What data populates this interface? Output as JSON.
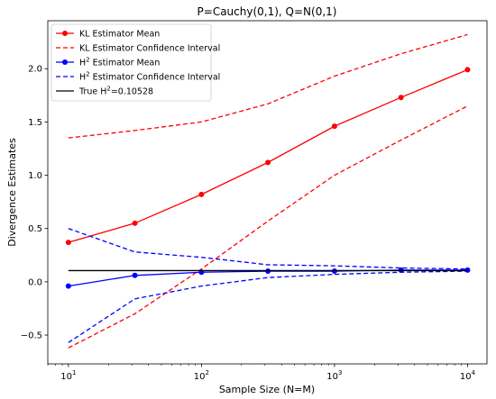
{
  "chart_data": {
    "type": "line",
    "title": "P=Cauchy(0,1), Q=N(0,1)",
    "xlabel": "Sample Size (N=M)",
    "ylabel": "Divergence Estimates",
    "x_scale": "log",
    "xlim": [
      7,
      14000
    ],
    "ylim": [
      -0.77,
      2.45
    ],
    "x_ticks": [
      {
        "value": 10,
        "base": "10",
        "exp": "1"
      },
      {
        "value": 100,
        "base": "10",
        "exp": "2"
      },
      {
        "value": 1000,
        "base": "10",
        "exp": "3"
      },
      {
        "value": 10000,
        "base": "10",
        "exp": "4"
      }
    ],
    "y_ticks": [
      {
        "value": -0.5,
        "label": "−0.5"
      },
      {
        "value": 0.0,
        "label": "0.0"
      },
      {
        "value": 0.5,
        "label": "0.5"
      },
      {
        "value": 1.0,
        "label": "1.0"
      },
      {
        "value": 1.5,
        "label": "1.5"
      },
      {
        "value": 2.0,
        "label": "2.0"
      }
    ],
    "x": [
      10,
      31.6,
      100,
      316,
      1000,
      3162,
      10000
    ],
    "legend_position": "top-left",
    "series": [
      {
        "name": "KL Estimator Mean",
        "color": "#ff0000",
        "style": "solid",
        "marker": true,
        "values": [
          0.37,
          0.55,
          0.82,
          1.12,
          1.46,
          1.73,
          1.99
        ]
      },
      {
        "name": "KL Estimator Confidence Interval",
        "color": "#ff0000",
        "style": "dashed",
        "marker": false,
        "values": [
          1.35,
          1.42,
          1.5,
          1.67,
          1.93,
          2.14,
          2.32
        ]
      },
      {
        "name": "KL Estimator Confidence Interval (lower)",
        "legend": false,
        "color": "#ff0000",
        "style": "dashed",
        "marker": false,
        "values": [
          -0.62,
          -0.3,
          0.12,
          0.57,
          1.0,
          1.33,
          1.65
        ]
      },
      {
        "name": "H² Estimator Mean",
        "color": "#0000ff",
        "style": "solid",
        "marker": true,
        "values": [
          -0.04,
          0.06,
          0.09,
          0.1,
          0.1,
          0.11,
          0.11
        ]
      },
      {
        "name": "H² Estimator Confidence Interval",
        "color": "#0000ff",
        "style": "dashed",
        "marker": false,
        "values": [
          0.5,
          0.28,
          0.23,
          0.16,
          0.15,
          0.13,
          0.12
        ]
      },
      {
        "name": "H² Estimator Confidence Interval (lower)",
        "legend": false,
        "color": "#0000ff",
        "style": "dashed",
        "marker": false,
        "values": [
          -0.57,
          -0.16,
          -0.04,
          0.04,
          0.07,
          0.09,
          0.1
        ]
      },
      {
        "name": "True H²=0.10528",
        "color": "#000000",
        "style": "solid",
        "marker": false,
        "values": [
          0.10528,
          0.10528,
          0.10528,
          0.10528,
          0.10528,
          0.10528,
          0.10528
        ]
      }
    ],
    "legend": [
      {
        "series": 0,
        "pre": "KL Estimator Mean",
        "sup": "",
        "post": ""
      },
      {
        "series": 1,
        "pre": "KL Estimator Confidence Interval",
        "sup": "",
        "post": ""
      },
      {
        "series": 3,
        "pre": "H",
        "sup": "2",
        "post": " Estimator Mean"
      },
      {
        "series": 4,
        "pre": "H",
        "sup": "2",
        "post": " Estimator Confidence Interval"
      },
      {
        "series": 6,
        "pre": "True H",
        "sup": "2",
        "post": "=0.10528"
      }
    ]
  }
}
